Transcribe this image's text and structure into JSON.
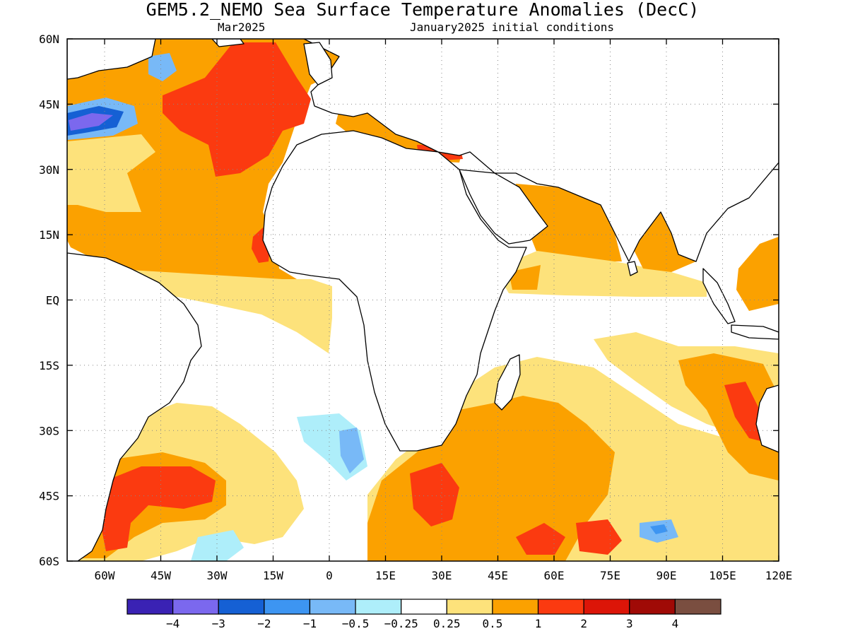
{
  "header": {
    "title": "GEM5.2_NEMO Sea Surface Temperature Anomalies (DecC)",
    "left_subtitle": "Mar2025",
    "right_subtitle": "January2025 initial conditions"
  },
  "map": {
    "lon_range": [
      -70,
      120
    ],
    "lat_range": [
      -60,
      60
    ],
    "grid": "dotted",
    "lat_ticks": [
      {
        "lat": 60,
        "label": "60N"
      },
      {
        "lat": 45,
        "label": "45N"
      },
      {
        "lat": 30,
        "label": "30N"
      },
      {
        "lat": 15,
        "label": "15N"
      },
      {
        "lat": 0,
        "label": "EQ"
      },
      {
        "lat": -15,
        "label": "15S"
      },
      {
        "lat": -30,
        "label": "30S"
      },
      {
        "lat": -45,
        "label": "45S"
      },
      {
        "lat": -60,
        "label": "60S"
      }
    ],
    "lon_ticks": [
      {
        "lon": -60,
        "label": "60W"
      },
      {
        "lon": -45,
        "label": "45W"
      },
      {
        "lon": -30,
        "label": "30W"
      },
      {
        "lon": -15,
        "label": "15W"
      },
      {
        "lon": 0,
        "label": "0"
      },
      {
        "lon": 15,
        "label": "15E"
      },
      {
        "lon": 30,
        "label": "30E"
      },
      {
        "lon": 45,
        "label": "45E"
      },
      {
        "lon": 60,
        "label": "60E"
      },
      {
        "lon": 75,
        "label": "75E"
      },
      {
        "lon": 90,
        "label": "90E"
      },
      {
        "lon": 105,
        "label": "105E"
      },
      {
        "lon": 120,
        "label": "120E"
      }
    ]
  },
  "colorbar": {
    "colors": [
      "#3a22b4",
      "#7b68ee",
      "#1560d4",
      "#3d95f2",
      "#78b9f7",
      "#aeeefa",
      "#ffffff",
      "#fde27b",
      "#fba100",
      "#fb3a10",
      "#dc1508",
      "#a00a06",
      "#7a4e40"
    ],
    "labels": [
      "−4",
      "−3",
      "−2",
      "−1",
      "−0.5",
      "−0.25",
      "0.25",
      "0.5",
      "1",
      "2",
      "3",
      "4"
    ]
  }
}
